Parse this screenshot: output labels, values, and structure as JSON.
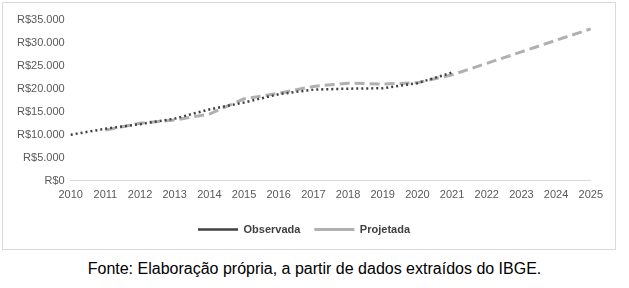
{
  "chart_data": {
    "type": "line",
    "caption": "Fonte: Elaboração própria, a partir de dados extraídos do IBGE.",
    "categories": [
      "2010",
      "2011",
      "2012",
      "2013",
      "2014",
      "2015",
      "2016",
      "2017",
      "2018",
      "2019",
      "2020",
      "2021",
      "2022",
      "2023",
      "2024",
      "2025"
    ],
    "series": [
      {
        "name": "Observada",
        "color": "#404040",
        "line_style": "dotted",
        "values": [
          10000,
          11300,
          12300,
          13500,
          15500,
          17000,
          18800,
          19800,
          20000,
          20100,
          21200,
          23500,
          null,
          null,
          null,
          null
        ]
      },
      {
        "name": "Projetada",
        "color": "#b0b0b0",
        "line_style": "dashed",
        "values": [
          null,
          11000,
          12500,
          13200,
          14500,
          17800,
          19000,
          20500,
          21200,
          21000,
          21300,
          23000,
          25500,
          28000,
          30500,
          33000
        ]
      }
    ],
    "ylim": [
      0,
      35000
    ],
    "yticks": [
      {
        "value": 0,
        "label": "R$0"
      },
      {
        "value": 5000,
        "label": "R$5.000"
      },
      {
        "value": 10000,
        "label": "R$10.000"
      },
      {
        "value": 15000,
        "label": "R$15.000"
      },
      {
        "value": 20000,
        "label": "R$20.000"
      },
      {
        "value": 25000,
        "label": "R$25.000"
      },
      {
        "value": 30000,
        "label": "R$30.000"
      },
      {
        "value": 35000,
        "label": "R$35.000"
      }
    ],
    "grid": false,
    "legend": "bottom"
  }
}
